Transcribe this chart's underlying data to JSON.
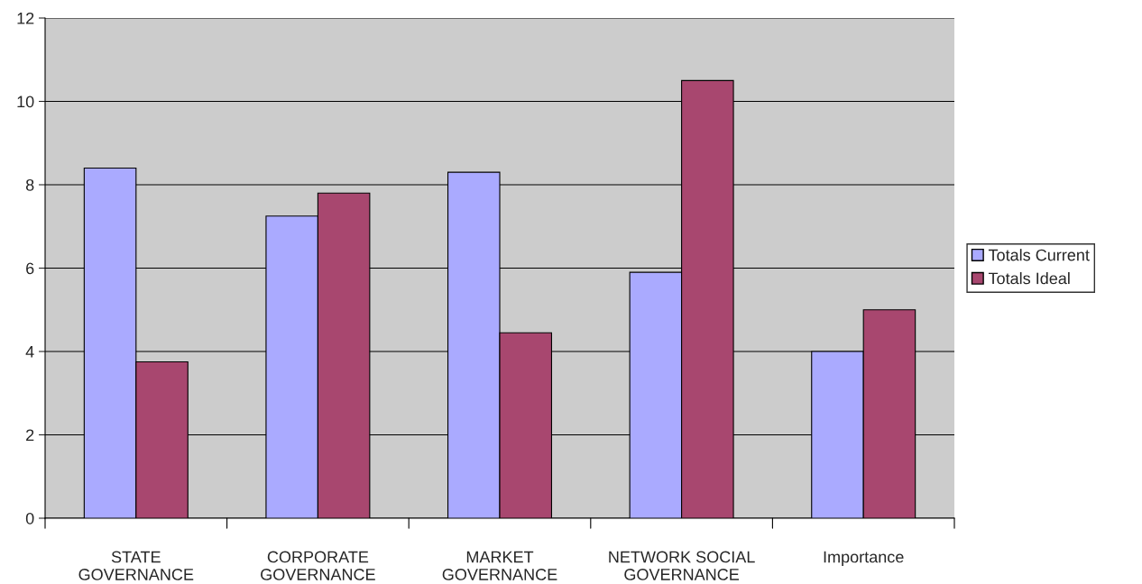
{
  "chart_data": {
    "type": "bar",
    "categories": [
      "STATE\nGOVERNANCE",
      "CORPORATE\nGOVERNANCE",
      "MARKET\nGOVERNANCE",
      "NETWORK SOCIAL\nGOVERNANCE",
      "Importance"
    ],
    "series": [
      {
        "name": "Totals Current",
        "color": "#aaaaff",
        "values": [
          8.4,
          7.25,
          8.3,
          5.9,
          4
        ]
      },
      {
        "name": "Totals Ideal",
        "color": "#a8476f",
        "values": [
          3.75,
          7.8,
          4.45,
          10.5,
          5
        ]
      }
    ],
    "ylim": [
      0,
      12
    ],
    "yticks": [
      0,
      2,
      4,
      6,
      8,
      10,
      12
    ],
    "grid": "y",
    "legend": "right"
  }
}
